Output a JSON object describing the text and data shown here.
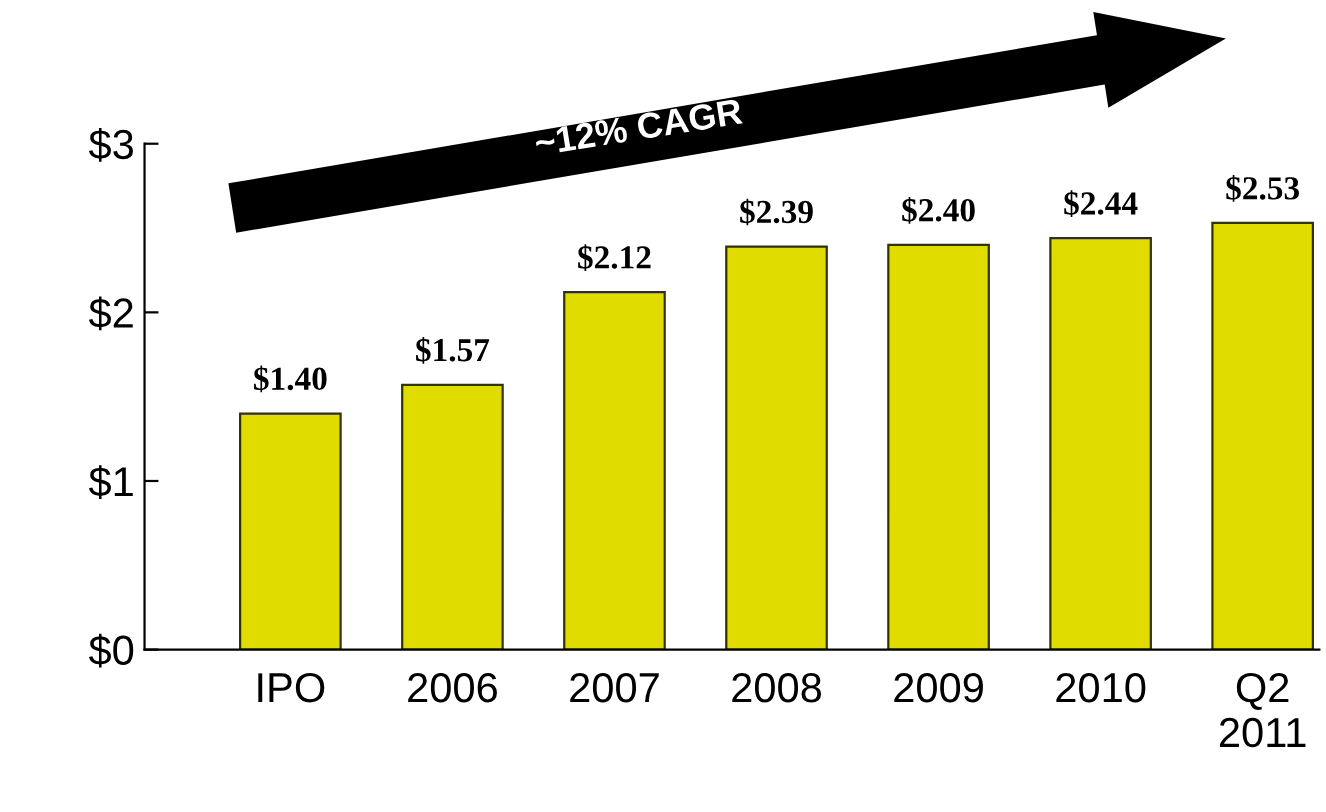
{
  "chart_data": {
    "type": "bar",
    "categories": [
      "IPO",
      "2006",
      "2007",
      "2008",
      "2009",
      "2010",
      "Q2\n2011"
    ],
    "values": [
      1.4,
      1.57,
      2.12,
      2.39,
      2.4,
      2.44,
      2.53
    ],
    "value_labels": [
      "$1.40",
      "$1.57",
      "$2.12",
      "$2.39",
      "$2.40",
      "$2.44",
      "$2.53"
    ],
    "color": "#e0dc00",
    "ylim": [
      0,
      3
    ],
    "yticks": [
      {
        "value": 0,
        "label": "$0"
      },
      {
        "value": 1,
        "label": "$1"
      },
      {
        "value": 2,
        "label": "$2"
      },
      {
        "value": 3,
        "label": "$3"
      }
    ],
    "annotations": [
      "~12% CAGR"
    ],
    "grid": false,
    "legend": false
  }
}
